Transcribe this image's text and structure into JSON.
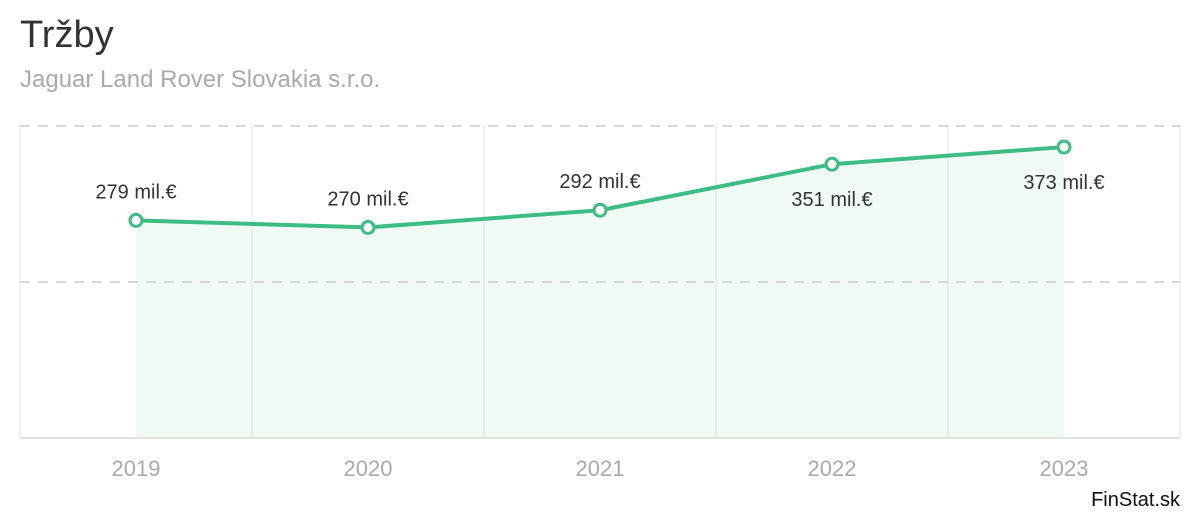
{
  "header": {
    "title": "Tržby",
    "subtitle": "Jaguar Land Rover Slovakia s.r.o."
  },
  "footer": {
    "brand": "FinStat.sk"
  },
  "colors": {
    "line": "#3dbd84",
    "fill": "#effaf4",
    "grid": "#e0e0e0",
    "dashed": "#d8d8d8"
  },
  "chart_data": {
    "type": "area",
    "title": "Tržby",
    "subtitle": "Jaguar Land Rover Slovakia s.r.o.",
    "xlabel": "",
    "ylabel": "",
    "categories": [
      "2019",
      "2020",
      "2021",
      "2022",
      "2023"
    ],
    "values": [
      279,
      270,
      292,
      351,
      373
    ],
    "labels": [
      "279 mil.€",
      "270 mil.€",
      "292 mil.€",
      "351 mil.€",
      "373 mil.€"
    ],
    "unit": "mil.€",
    "ylim": [
      0,
      400
    ],
    "grid": true
  }
}
